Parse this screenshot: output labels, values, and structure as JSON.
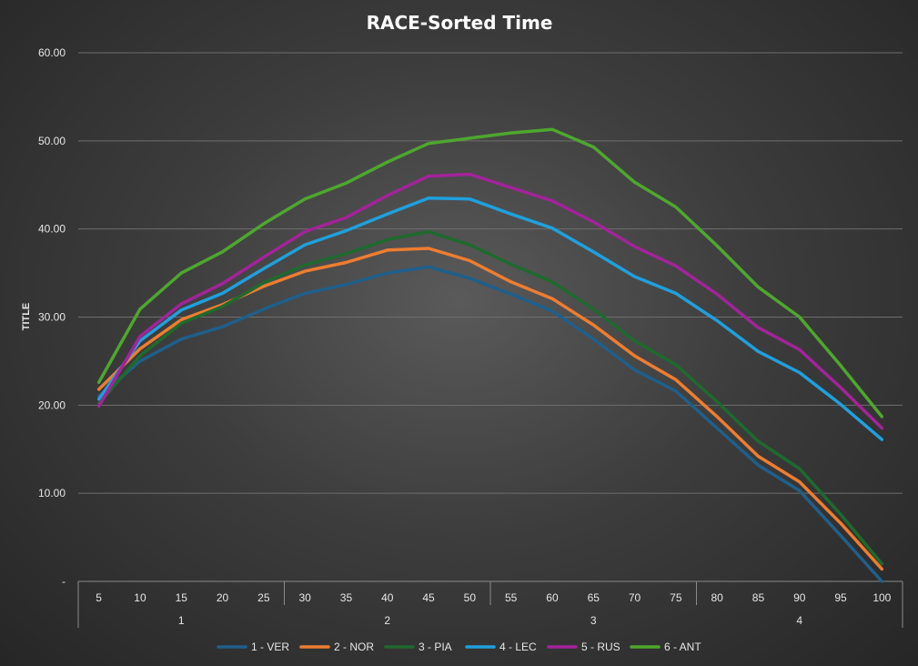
{
  "chart_data": {
    "type": "line",
    "title": "RACE-Sorted Time",
    "ylabel": "TITLE",
    "xlabel": "",
    "ylim": [
      0,
      60
    ],
    "y_ticks": [
      {
        "value": 0,
        "label": "-"
      },
      {
        "value": 10,
        "label": "10.00"
      },
      {
        "value": 20,
        "label": "20.00"
      },
      {
        "value": 30,
        "label": "30.00"
      },
      {
        "value": 40,
        "label": "40.00"
      },
      {
        "value": 50,
        "label": "50.00"
      },
      {
        "value": 60,
        "label": "60.00"
      }
    ],
    "categories": [
      "5",
      "10",
      "15",
      "20",
      "25",
      "30",
      "35",
      "40",
      "45",
      "50",
      "55",
      "60",
      "65",
      "70",
      "75",
      "80",
      "85",
      "90",
      "95",
      "100"
    ],
    "category_groups": [
      {
        "label": "1",
        "count": 5
      },
      {
        "label": "2",
        "count": 5
      },
      {
        "label": "3",
        "count": 5
      },
      {
        "label": "4",
        "count": 5
      }
    ],
    "grid": true,
    "legend_position": "bottom",
    "series": [
      {
        "name": "1 - VER",
        "color": "#1f5f8b",
        "values": [
          21.0,
          25.0,
          27.5,
          28.9,
          30.9,
          32.7,
          33.7,
          35.0,
          35.7,
          34.4,
          32.6,
          30.7,
          27.5,
          24.0,
          21.6,
          17.4,
          13.2,
          10.3,
          5.2,
          0.0
        ]
      },
      {
        "name": "2 - NOR",
        "color": "#ed7d31",
        "values": [
          21.8,
          26.4,
          29.7,
          31.4,
          33.5,
          35.2,
          36.2,
          37.6,
          37.8,
          36.4,
          34.0,
          32.1,
          29.1,
          25.6,
          22.9,
          18.7,
          14.2,
          11.3,
          6.6,
          1.4
        ]
      },
      {
        "name": "3 - PIA",
        "color": "#1e6a2e",
        "values": [
          20.2,
          25.6,
          29.3,
          31.2,
          33.9,
          35.9,
          37.2,
          38.8,
          39.7,
          38.2,
          36.0,
          34.0,
          30.9,
          27.3,
          24.6,
          20.4,
          15.9,
          12.8,
          7.6,
          2.0
        ]
      },
      {
        "name": "4 - LEC",
        "color": "#1fa0dc",
        "values": [
          20.7,
          27.3,
          30.8,
          32.7,
          35.5,
          38.2,
          39.8,
          41.7,
          43.5,
          43.4,
          41.7,
          40.1,
          37.4,
          34.6,
          32.7,
          29.6,
          26.1,
          23.7,
          20.1,
          16.1
        ]
      },
      {
        "name": "5 - RUS",
        "color": "#a3239a",
        "values": [
          19.9,
          27.8,
          31.5,
          33.8,
          36.8,
          39.7,
          41.3,
          43.8,
          46.0,
          46.2,
          44.7,
          43.2,
          40.8,
          38.0,
          35.8,
          32.6,
          28.8,
          26.3,
          22.0,
          17.4
        ]
      },
      {
        "name": "6 - ANT",
        "color": "#4ea72e",
        "values": [
          22.6,
          30.9,
          35.0,
          37.4,
          40.6,
          43.4,
          45.2,
          47.6,
          49.7,
          50.3,
          50.9,
          51.3,
          49.3,
          45.3,
          42.5,
          38.1,
          33.4,
          30.0,
          24.5,
          18.7
        ]
      }
    ]
  }
}
